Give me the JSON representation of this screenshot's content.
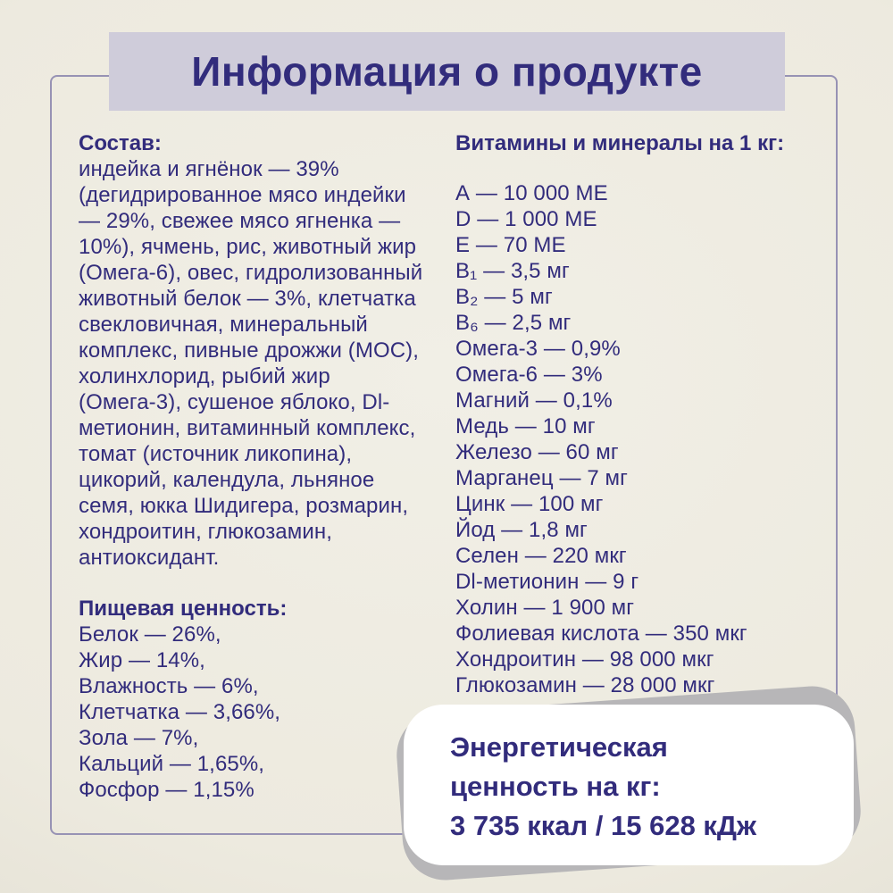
{
  "page": {
    "title": "Информация о продукте"
  },
  "composition": {
    "heading": "Состав:",
    "text": "индейка и ягнёнок — 39% (дегидрированное мясо индейки — 29%, свежее мясо ягненка — 10%), ячмень, рис, животный жир (Омега-6), овес, гидролизованный животный белок — 3%, клетчатка свекловичная, минеральный комплекс, пивные дрожжи (МОС), холинхлорид, рыбий жир (Омега-3), сушеное яблоко, Dl-метионин, витаминный комплекс, томат (источник ликопина), цикорий, календула, льняное семя, юкка Шидигера, розмарин, хондроитин, глюкозамин, антиоксидант."
  },
  "nutrition": {
    "heading": "Пищевая ценность:",
    "items": [
      "Белок — 26%,",
      "Жир — 14%,",
      "Влажность — 6%,",
      "Клетчатка — 3,66%,",
      "Зола — 7%,",
      "Кальций — 1,65%,",
      "Фосфор — 1,15%"
    ]
  },
  "vitamins": {
    "heading": "Витамины и минералы на 1 кг:",
    "items": [
      "А — 10 000 МЕ",
      "D — 1 000 МЕ",
      "Е — 70 МЕ",
      "В₁ — 3,5 мг",
      "В₂ — 5 мг",
      "В₆ — 2,5 мг",
      "Омега-3 — 0,9%",
      "Омега-6 — 3%",
      "Магний — 0,1%",
      "Медь — 10 мг",
      "Железо — 60 мг",
      "Марганец — 7 мг",
      "Цинк — 100 мг",
      "Йод — 1,8 мг",
      "Селен — 220 мкг",
      "Dl-метионин — 9 г",
      "Холин — 1 900 мг",
      "Фолиевая кислота — 350 мкг",
      "Хондроитин — 98 000 мкг",
      "Глюкозамин — 28 000 мкг"
    ]
  },
  "energy": {
    "heading": "Энергетическая ценность на кг:",
    "value": "3 735 ккал / 15 628 кДж"
  },
  "colors": {
    "ink": "#322c7c",
    "banner": "#cfccda",
    "background": "#edeadf",
    "border": "#9792b4",
    "shadow": "#b7b6b8",
    "card": "#ffffff"
  }
}
